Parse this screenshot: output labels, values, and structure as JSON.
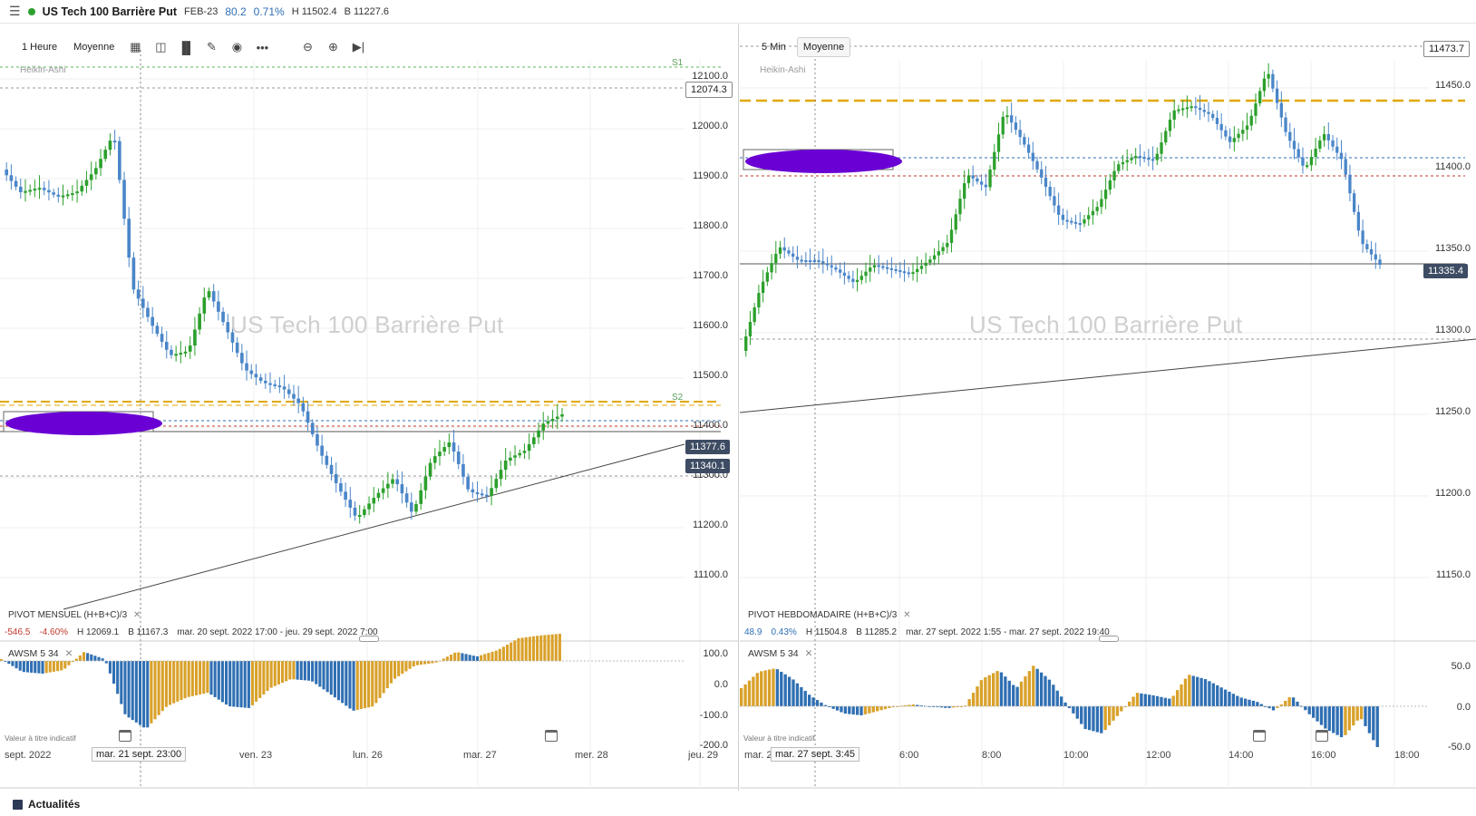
{
  "header": {
    "instrument": "US Tech 100 Barrière Put",
    "contract": "FEB-23",
    "change": "80.2",
    "change_pct": "0.71%",
    "high": "H 11502.4",
    "low": "B 11227.6"
  },
  "left": {
    "timeframe": "1 Heure",
    "price_type": "Moyenne",
    "chart_type": "Heikin-Ashi",
    "watermark": "US Tech 100 Barrière Put",
    "pivot_label": "PIVOT  MENSUEL  (H+B+C)/3",
    "pivot_stats": [
      "-546.5",
      "-4.60%",
      "H 12069.1",
      "B 11167.3",
      "mar. 20 sept. 2022 17:00 - jeu. 29 sept. 2022 7:00"
    ],
    "awsm_label": "AWSM   5   34",
    "note": "Valeur à titre indicatif",
    "pivot_tags": [
      "S1",
      "S2"
    ],
    "price_axis": [
      "12100.0",
      "12000.0",
      "11900.0",
      "11800.0",
      "11700.0",
      "11600.0",
      "11500.0",
      "11400.0",
      "11300.0",
      "11200.0",
      "11100.0"
    ],
    "price_tags": [
      "12074.3",
      "11377.6",
      "11340.1"
    ],
    "awsm_axis": [
      "100.0",
      "0.0",
      "-100.0",
      "-200.0"
    ],
    "time_axis": [
      "sept. 2022",
      "ven. 23",
      "lun. 26",
      "mar. 27",
      "mer. 28",
      "jeu. 29"
    ],
    "crosshair_time": "mar. 21 sept. 23:00"
  },
  "right": {
    "timeframe": "5 Min",
    "price_type": "Moyenne",
    "chart_type": "Heikin-Ashi",
    "watermark": "US Tech 100 Barrière Put",
    "pivot_label": "PIVOT  HEBDOMADAIRE  (H+B+C)/3",
    "pivot_stats": [
      "48.9",
      "0.43%",
      "H 11504.8",
      "B 11285.2",
      "mar. 27 sept. 2022 1:55 - mar. 27 sept. 2022 19:40"
    ],
    "awsm_label": "AWSM   5   34",
    "note": "Valeur à titre indicatif",
    "price_axis": [
      "11450.0",
      "11400.0",
      "11350.0",
      "11300.0",
      "11250.0",
      "11200.0",
      "11150.0"
    ],
    "price_tags": [
      "11473.7",
      "11335.4"
    ],
    "awsm_axis": [
      "50.0",
      "0.0",
      "-50.0"
    ],
    "time_axis": [
      "mar. 2",
      "6:00",
      "8:00",
      "10:00",
      "12:00",
      "14:00",
      "16:00",
      "18:00"
    ],
    "crosshair_time": "mar. 27 sept. 3:45"
  },
  "footer": {
    "news": "Actualités"
  },
  "colors": {
    "up": "#2ca02c",
    "down": "#4a86c8",
    "osc_up": "#d9a12a",
    "osc_down": "#2f6fb3",
    "pivot": "#e0a800",
    "scribble": "#6a00d4"
  },
  "icons": [
    "menu-icon",
    "calendar-icon",
    "layout-icon",
    "bar-chart-icon",
    "pencil-icon",
    "eye-icon",
    "more-icon",
    "zoom-out-icon",
    "zoom-in-icon",
    "skip-end-icon"
  ]
}
